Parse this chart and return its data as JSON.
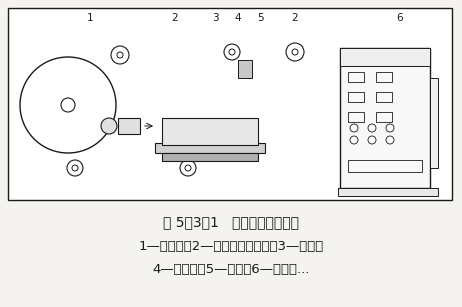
{
  "title_line": "图 5－3－1   电火花线切割原理",
  "desc_line1": "1—贮丝筒；2—工作台驱动电机；3—导轮；",
  "desc_line2": "4—电极丝；5—工件；6—脉冲电...",
  "bg_color": "#f5f3f0",
  "diagram_bg": "#ffffff",
  "line_color": "#1a1a1a",
  "text_color": "#1a1a1a",
  "title_fontsize": 10,
  "desc_fontsize": 9.5,
  "fig_width": 4.62,
  "fig_height": 3.07,
  "dpi": 100,
  "border": [
    8,
    8,
    450,
    198
  ]
}
